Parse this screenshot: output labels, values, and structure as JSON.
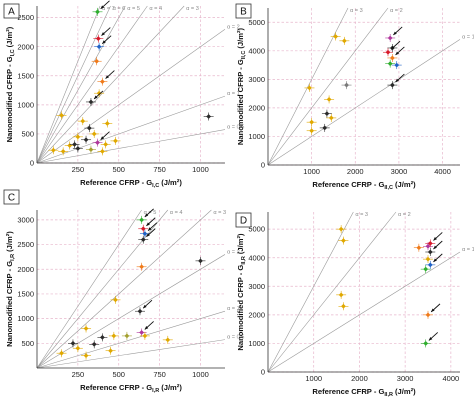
{
  "colors": {
    "grid": "#e7b6cc",
    "ratio_line": "#9a9a9a",
    "black": "#2b2b2b",
    "gold": "#e0a800",
    "orange": "#ef7a1a",
    "red": "#d7192a",
    "green": "#2fae2f",
    "blue": "#1f62c6",
    "magenta": "#b0379c",
    "olive": "#a39f2e",
    "gray": "#7a7a7a"
  },
  "chart_data": [
    {
      "panel": "A",
      "type": "scatter",
      "xlabel": "Reference CFRP - G",
      "xlabel_sub": "I,C",
      "xlabel_unit": "(J/m²)",
      "ylabel": "Nanomodified CFRP - G",
      "ylabel_sub": "I,C",
      "ylabel_unit": "(J/m²)",
      "xlim": [
        0,
        1150
      ],
      "ylim": [
        0,
        2700
      ],
      "xticks": [
        "250",
        "500",
        "750",
        "1000"
      ],
      "yticks": [
        "0",
        "500",
        "1000",
        "1500",
        "2000",
        "2500"
      ],
      "ratio_lines": [
        {
          "alpha": 7,
          "label": "α = 7"
        },
        {
          "alpha": 6,
          "label": "α = 6"
        },
        {
          "alpha": 5,
          "label": "α = 5"
        },
        {
          "alpha": 4,
          "label": "α = 4"
        },
        {
          "alpha": 3,
          "label": "α = 3"
        },
        {
          "alpha": 2,
          "label": "α = 2"
        },
        {
          "alpha": 1,
          "label": "α = 1"
        },
        {
          "alpha": 0.5,
          "label": "α = 0.5"
        }
      ],
      "points": [
        {
          "x": 370,
          "y": 2600,
          "color": "green",
          "arrow": true
        },
        {
          "x": 375,
          "y": 2140,
          "color": "red",
          "arrow": true
        },
        {
          "x": 380,
          "y": 2000,
          "color": "blue",
          "arrow": true
        },
        {
          "x": 365,
          "y": 1750,
          "color": "orange"
        },
        {
          "x": 400,
          "y": 1400,
          "color": "orange",
          "arrow": true
        },
        {
          "x": 380,
          "y": 1200,
          "color": "gold"
        },
        {
          "x": 330,
          "y": 1050,
          "color": "black",
          "arrow": true
        },
        {
          "x": 150,
          "y": 820,
          "color": "gold"
        },
        {
          "x": 280,
          "y": 720,
          "color": "gold"
        },
        {
          "x": 430,
          "y": 680,
          "color": "gold"
        },
        {
          "x": 1050,
          "y": 800,
          "color": "black"
        },
        {
          "x": 320,
          "y": 600,
          "color": "black"
        },
        {
          "x": 350,
          "y": 500,
          "color": "gold"
        },
        {
          "x": 250,
          "y": 450,
          "color": "gold"
        },
        {
          "x": 300,
          "y": 400,
          "color": "black"
        },
        {
          "x": 370,
          "y": 350,
          "color": "magenta",
          "arrow": true
        },
        {
          "x": 420,
          "y": 320,
          "color": "gold"
        },
        {
          "x": 200,
          "y": 300,
          "color": "gold"
        },
        {
          "x": 480,
          "y": 380,
          "color": "gold"
        },
        {
          "x": 250,
          "y": 250,
          "color": "black"
        },
        {
          "x": 100,
          "y": 220,
          "color": "gold"
        },
        {
          "x": 160,
          "y": 200,
          "color": "gold"
        },
        {
          "x": 330,
          "y": 230,
          "color": "olive"
        },
        {
          "x": 400,
          "y": 200,
          "color": "gold"
        },
        {
          "x": 230,
          "y": 320,
          "color": "black"
        }
      ]
    },
    {
      "panel": "B",
      "type": "scatter",
      "xlabel": "Reference CFRP - G",
      "xlabel_sub": "II,C",
      "xlabel_unit": "(J/m²)",
      "ylabel": "Nanomodified CFRP - G",
      "ylabel_sub": "II,C",
      "ylabel_unit": "(J/m²)",
      "xlim": [
        0,
        4400
      ],
      "ylim": [
        0,
        5500
      ],
      "xticks": [
        "1000",
        "2000",
        "3000",
        "4000"
      ],
      "yticks": [
        "0",
        "1000",
        "2000",
        "3000",
        "4000",
        "5000"
      ],
      "ratio_lines": [
        {
          "alpha": 3,
          "label": "α = 3"
        },
        {
          "alpha": 2,
          "label": "α = 2"
        },
        {
          "alpha": 1,
          "label": "α = 1"
        }
      ],
      "points": [
        {
          "x": 1550,
          "y": 4500,
          "color": "gold"
        },
        {
          "x": 1750,
          "y": 4350,
          "color": "gold"
        },
        {
          "x": 2800,
          "y": 4450,
          "color": "magenta",
          "arrow": true
        },
        {
          "x": 2850,
          "y": 4100,
          "color": "black"
        },
        {
          "x": 2750,
          "y": 3950,
          "color": "red",
          "arrow": true
        },
        {
          "x": 2850,
          "y": 3750,
          "color": "orange",
          "arrow": true
        },
        {
          "x": 2800,
          "y": 3550,
          "color": "green"
        },
        {
          "x": 2950,
          "y": 3500,
          "color": "blue"
        },
        {
          "x": 1800,
          "y": 2800,
          "color": "gray"
        },
        {
          "x": 2850,
          "y": 2800,
          "color": "black",
          "arrow": true
        },
        {
          "x": 950,
          "y": 2700,
          "color": "gold"
        },
        {
          "x": 1400,
          "y": 2300,
          "color": "gold"
        },
        {
          "x": 1350,
          "y": 1800,
          "color": "black"
        },
        {
          "x": 1000,
          "y": 1500,
          "color": "gold"
        },
        {
          "x": 1000,
          "y": 1200,
          "color": "gold"
        },
        {
          "x": 1300,
          "y": 1300,
          "color": "black"
        },
        {
          "x": 1450,
          "y": 1650,
          "color": "gold"
        }
      ]
    },
    {
      "panel": "C",
      "type": "scatter",
      "xlabel": "Reference CFRP - G",
      "xlabel_sub": "I,R",
      "xlabel_unit": "(J/m²)",
      "ylabel": "Nanomodified CFRP - G",
      "ylabel_sub": "I,R",
      "ylabel_unit": "(J/m²)",
      "xlim": [
        0,
        1150
      ],
      "ylim": [
        0,
        3200
      ],
      "xticks": [
        "250",
        "500",
        "750",
        "1000"
      ],
      "yticks": [
        "500",
        "1000",
        "1500",
        "2000",
        "2500",
        "3000"
      ],
      "ratio_lines": [
        {
          "alpha": 5,
          "label": "α = 5"
        },
        {
          "alpha": 4,
          "label": "α = 4"
        },
        {
          "alpha": 3,
          "label": "α = 3"
        },
        {
          "alpha": 2,
          "label": "α = 2"
        },
        {
          "alpha": 1,
          "label": "α = 1"
        },
        {
          "alpha": 0.5,
          "label": "α = 0.5"
        }
      ],
      "points": [
        {
          "x": 640,
          "y": 3000,
          "color": "green",
          "arrow": true
        },
        {
          "x": 650,
          "y": 2820,
          "color": "red",
          "arrow": true
        },
        {
          "x": 660,
          "y": 2720,
          "color": "blue",
          "arrow": true
        },
        {
          "x": 650,
          "y": 2600,
          "color": "black",
          "arrow": true
        },
        {
          "x": 640,
          "y": 2050,
          "color": "orange"
        },
        {
          "x": 1000,
          "y": 2170,
          "color": "black"
        },
        {
          "x": 630,
          "y": 1150,
          "color": "black",
          "arrow": true
        },
        {
          "x": 640,
          "y": 720,
          "color": "magenta",
          "arrow": true
        },
        {
          "x": 660,
          "y": 650,
          "color": "gold"
        },
        {
          "x": 480,
          "y": 1380,
          "color": "gold"
        },
        {
          "x": 300,
          "y": 800,
          "color": "gold"
        },
        {
          "x": 400,
          "y": 620,
          "color": "black"
        },
        {
          "x": 470,
          "y": 650,
          "color": "gold"
        },
        {
          "x": 800,
          "y": 570,
          "color": "gold"
        },
        {
          "x": 350,
          "y": 480,
          "color": "black"
        },
        {
          "x": 220,
          "y": 500,
          "color": "black"
        },
        {
          "x": 150,
          "y": 300,
          "color": "gold"
        },
        {
          "x": 250,
          "y": 400,
          "color": "gold"
        },
        {
          "x": 450,
          "y": 350,
          "color": "gold"
        },
        {
          "x": 550,
          "y": 650,
          "color": "olive"
        },
        {
          "x": 300,
          "y": 250,
          "color": "gold"
        }
      ]
    },
    {
      "panel": "D",
      "type": "scatter",
      "xlabel": "Reference CFRP - G",
      "xlabel_sub": "II,R",
      "xlabel_unit": "(J/m²)",
      "ylabel": "Nanomodified CFRP - G",
      "ylabel_sub": "II,R",
      "ylabel_unit": "(J/m²)",
      "xlim": [
        0,
        4200
      ],
      "ylim": [
        0,
        5600
      ],
      "xticks": [
        "1000",
        "2000",
        "3000",
        "4000"
      ],
      "yticks": [
        "0",
        "1000",
        "2000",
        "3000",
        "4000",
        "5000"
      ],
      "ratio_lines": [
        {
          "alpha": 3,
          "label": "α = 3"
        },
        {
          "alpha": 2,
          "label": "α = 2"
        },
        {
          "alpha": 1,
          "label": "α = 1"
        }
      ],
      "points": [
        {
          "x": 1600,
          "y": 5000,
          "color": "gold"
        },
        {
          "x": 1650,
          "y": 4600,
          "color": "gold"
        },
        {
          "x": 3550,
          "y": 4500,
          "color": "red",
          "arrow": true
        },
        {
          "x": 3500,
          "y": 4400,
          "color": "magenta"
        },
        {
          "x": 3300,
          "y": 4350,
          "color": "orange"
        },
        {
          "x": 3550,
          "y": 4200,
          "color": "black",
          "arrow": true
        },
        {
          "x": 3500,
          "y": 3950,
          "color": "gold"
        },
        {
          "x": 3550,
          "y": 3750,
          "color": "blue",
          "arrow": true
        },
        {
          "x": 3450,
          "y": 3600,
          "color": "green"
        },
        {
          "x": 1600,
          "y": 2700,
          "color": "gold"
        },
        {
          "x": 1650,
          "y": 2300,
          "color": "gold"
        },
        {
          "x": 3500,
          "y": 2000,
          "color": "orange",
          "arrow": true
        },
        {
          "x": 3450,
          "y": 1000,
          "color": "green",
          "arrow": true
        }
      ]
    }
  ]
}
